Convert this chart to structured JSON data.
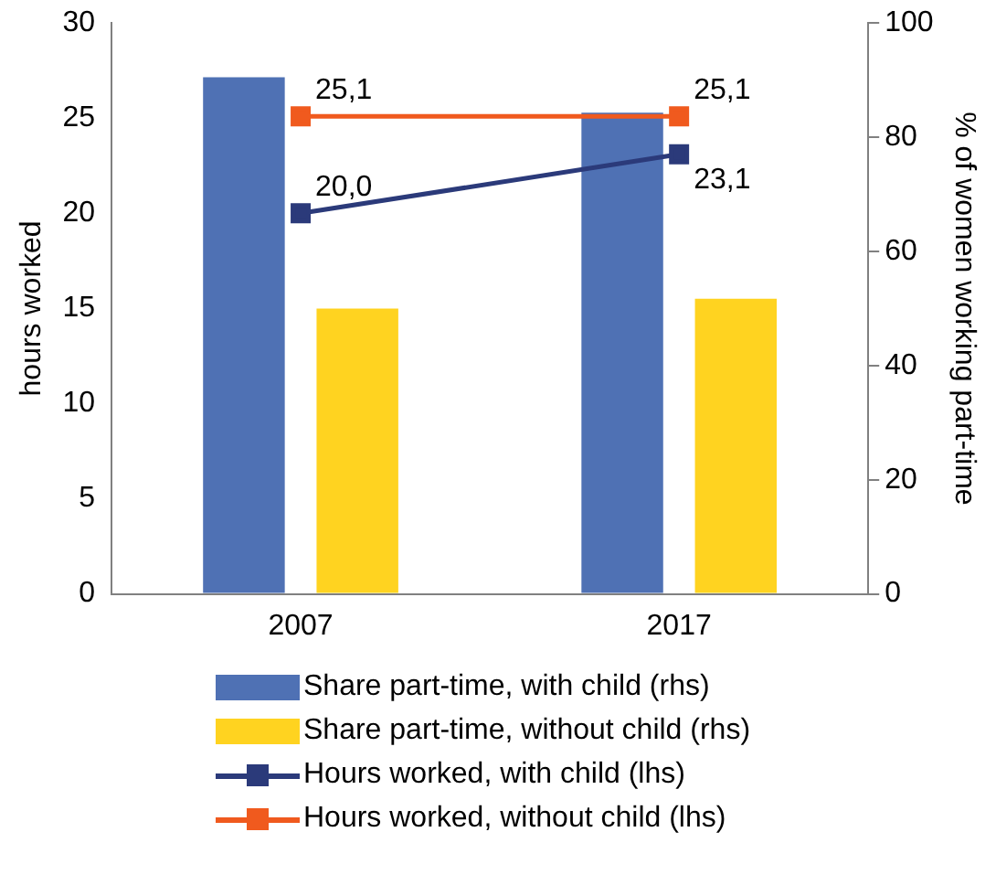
{
  "chart_data": {
    "type": "bar",
    "categories": [
      "2007",
      "2017"
    ],
    "ylabel": "hours worked",
    "y2label": "% of women working part-time",
    "ylim": [
      0,
      30
    ],
    "yticks": [
      0,
      5,
      10,
      15,
      20,
      25,
      30
    ],
    "y2lim": [
      0,
      100
    ],
    "y2ticks": [
      0,
      20,
      40,
      60,
      80,
      100
    ],
    "grid": false,
    "legend": "bottom",
    "series": [
      {
        "name": "Share part-time, with child (rhs)",
        "axis": "y2",
        "color": "#4f71b4",
        "values": [
          90.5,
          84.3
        ]
      },
      {
        "name": "Share part-time, without child (rhs)",
        "axis": "y2",
        "color": "#ffd320",
        "values": [
          50.0,
          51.7
        ]
      },
      {
        "name": "Hours worked, with child (lhs)",
        "type": "line",
        "axis": "y",
        "color": "#2b3a7a",
        "marker": "square",
        "values": [
          20.0,
          23.1
        ],
        "value_labels": [
          "20,0",
          "23,1"
        ]
      },
      {
        "name": "Hours worked, without child (lhs)",
        "type": "line",
        "axis": "y",
        "color": "#f05a1e",
        "marker": "square",
        "values": [
          25.1,
          25.1
        ],
        "value_labels": [
          "25,1",
          "25,1"
        ]
      }
    ]
  }
}
